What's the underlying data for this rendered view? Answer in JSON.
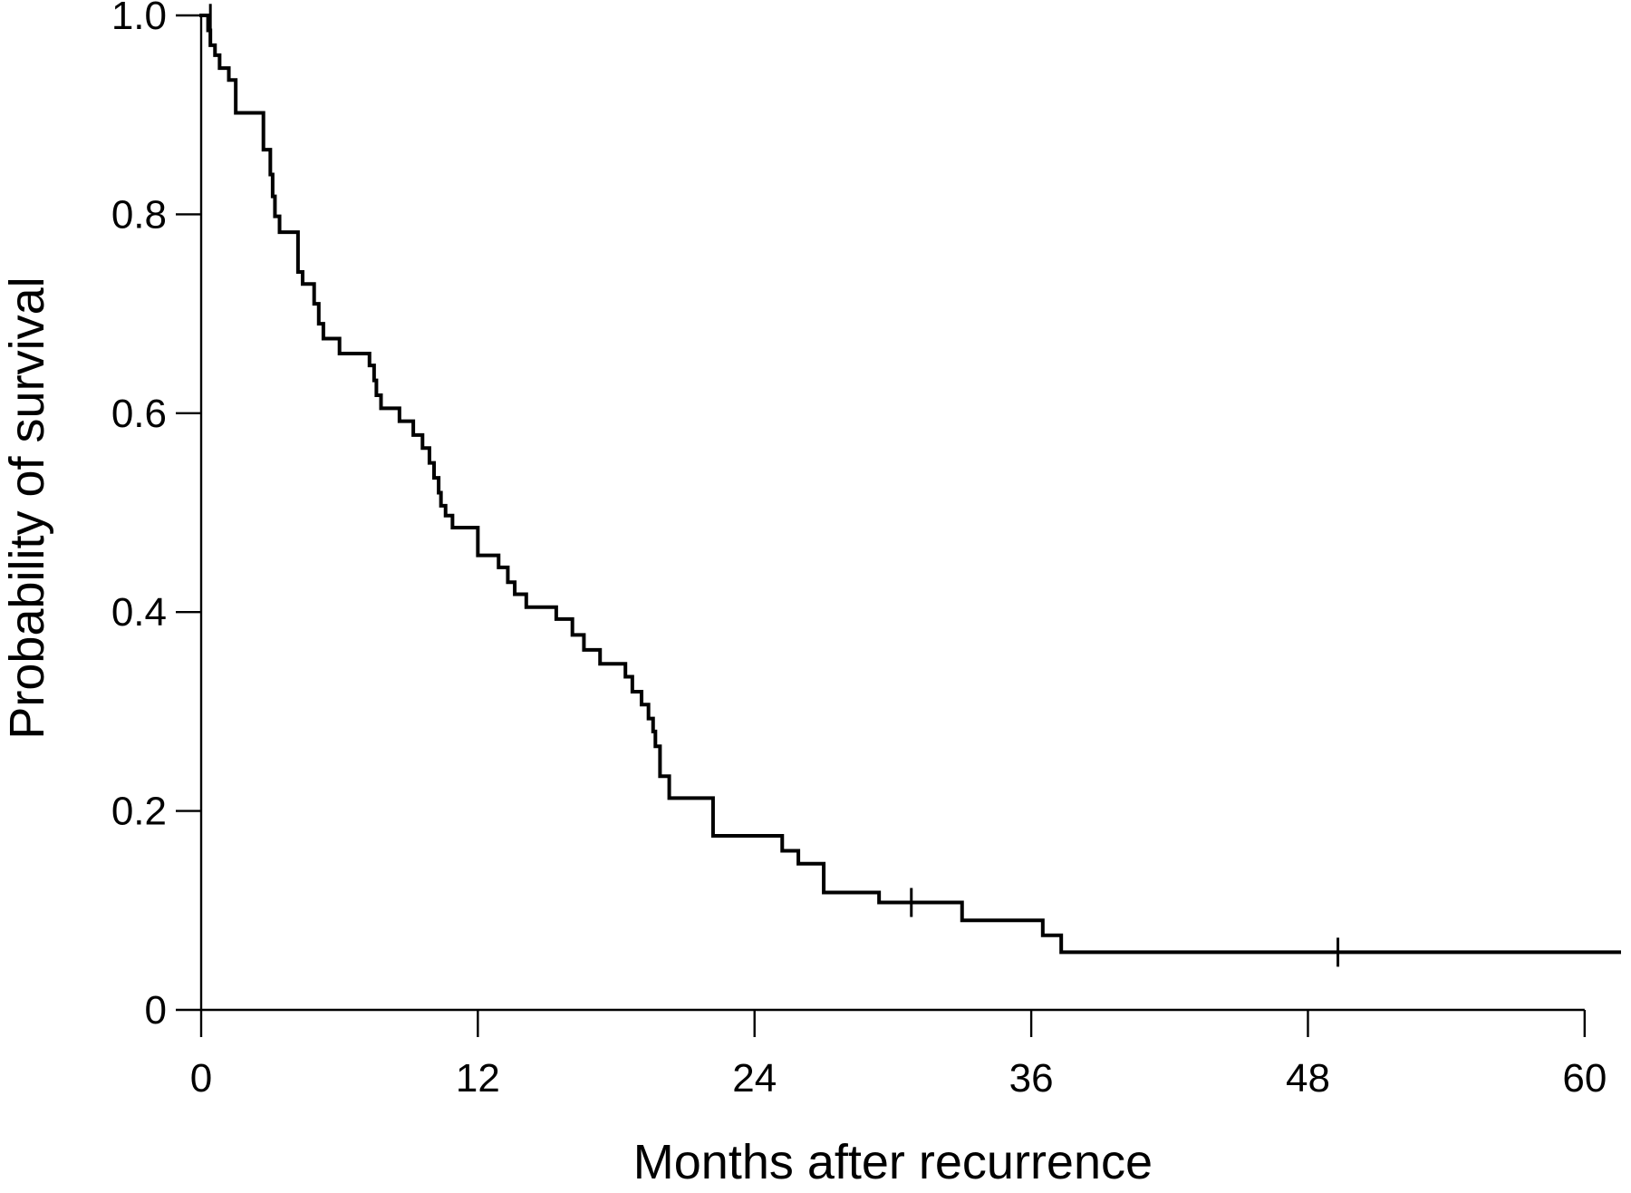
{
  "chart_data": {
    "type": "line",
    "subtype": "kaplan-meier-step",
    "title": "",
    "xlabel": "Months after recurrence",
    "ylabel": "Probability of survival",
    "xlim": [
      0,
      61.5
    ],
    "ylim": [
      0,
      1.0
    ],
    "xticks": [
      0,
      12,
      24,
      36,
      48,
      60
    ],
    "xtick_labels": [
      "0",
      "12",
      "24",
      "36",
      "48",
      "60"
    ],
    "yticks": [
      0,
      0.2,
      0.4,
      0.6,
      0.8,
      1.0
    ],
    "ytick_labels": [
      "0",
      "0.2",
      "0.4",
      "0.6",
      "0.8",
      "1.0"
    ],
    "grid": false,
    "legend": "none",
    "line_color": "#000000",
    "series": [
      {
        "x": [
          0,
          0.3,
          0.4,
          0.6,
          0.8,
          1.2,
          1.5,
          2.7,
          3.0,
          3.1,
          3.2,
          3.4,
          3.6,
          4.2,
          4.4,
          4.8,
          4.9,
          5.1,
          5.3,
          6.0,
          7.3,
          7.5,
          7.6,
          7.8,
          8.6,
          9.2,
          9.6,
          9.9,
          10.1,
          10.3,
          10.4,
          10.6,
          10.9,
          12.0,
          12.9,
          13.3,
          13.6,
          14.1,
          15.4,
          16.1,
          16.6,
          17.3,
          18.4,
          18.7,
          19.1,
          19.4,
          19.6,
          19.7,
          19.9,
          20.3,
          22.2,
          25.2,
          25.9,
          27.0,
          29.4,
          33.0,
          36.5,
          37.3,
          61.5
        ],
        "y": [
          1.0,
          0.985,
          0.97,
          0.96,
          0.947,
          0.935,
          0.902,
          0.865,
          0.84,
          0.818,
          0.798,
          0.782,
          0.782,
          0.742,
          0.73,
          0.73,
          0.71,
          0.69,
          0.675,
          0.66,
          0.648,
          0.633,
          0.618,
          0.605,
          0.592,
          0.578,
          0.565,
          0.55,
          0.535,
          0.52,
          0.507,
          0.497,
          0.485,
          0.457,
          0.445,
          0.43,
          0.418,
          0.405,
          0.393,
          0.377,
          0.362,
          0.348,
          0.335,
          0.32,
          0.307,
          0.293,
          0.28,
          0.265,
          0.235,
          0.213,
          0.175,
          0.16,
          0.147,
          0.118,
          0.108,
          0.09,
          0.075,
          0.058,
          0.058
        ]
      }
    ],
    "censored": [
      {
        "x": 0.4,
        "y": 0.997
      },
      {
        "x": 30.8,
        "y": 0.108
      },
      {
        "x": 49.3,
        "y": 0.058
      }
    ]
  }
}
